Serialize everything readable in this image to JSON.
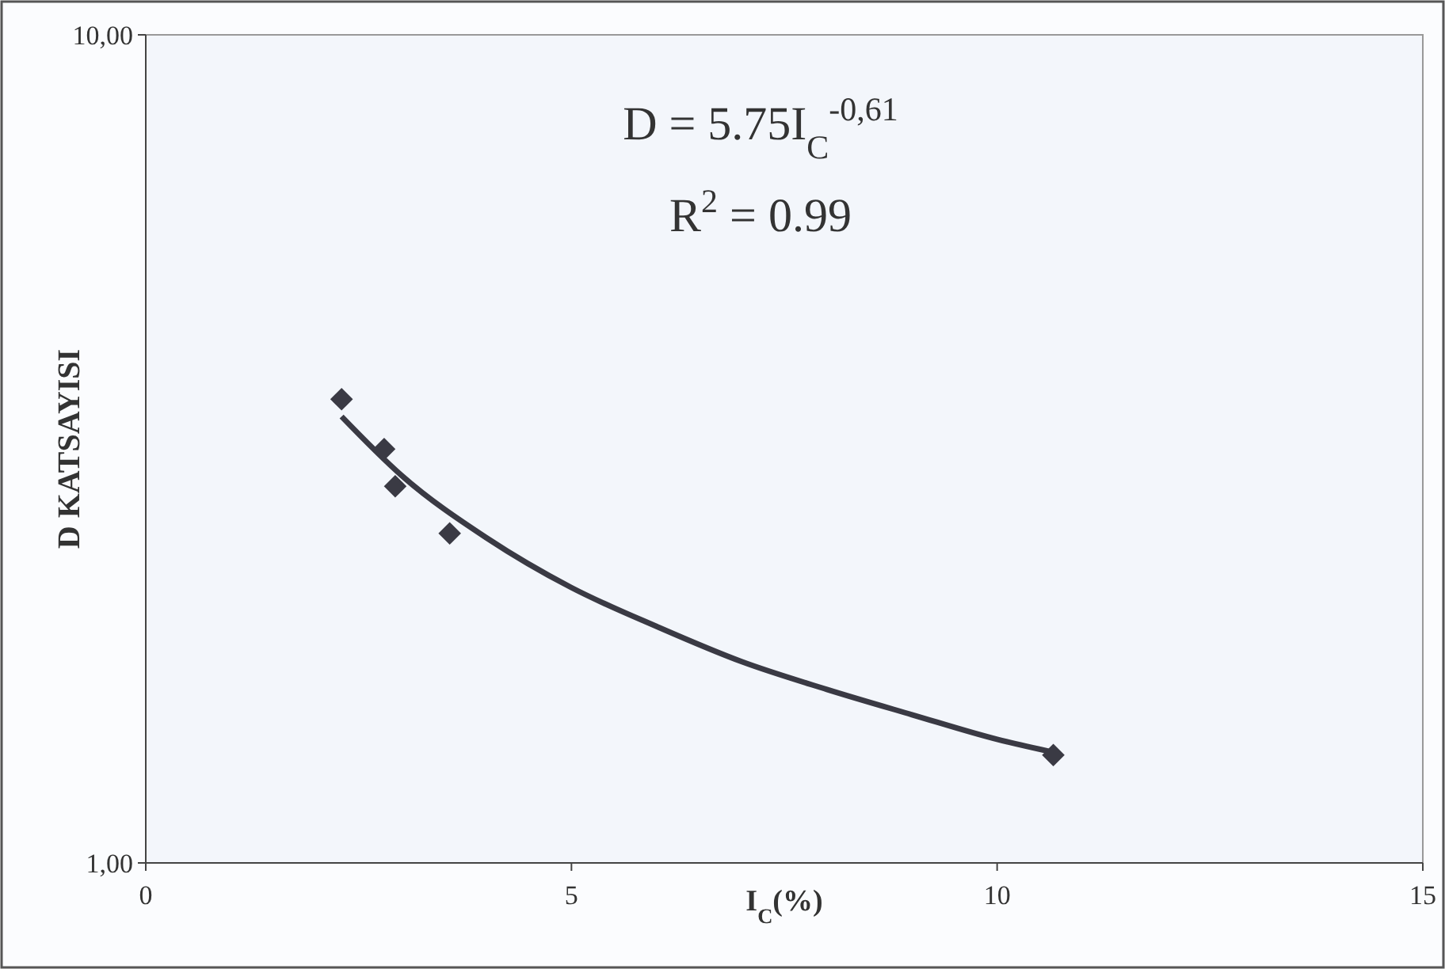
{
  "chart_data": {
    "type": "scatter",
    "xlabel": "I$_{C}$(%)",
    "ylabel": "D KATSAYISI",
    "log": "y",
    "xlim": [
      0,
      15
    ],
    "ylim": [
      1,
      10
    ],
    "xticks": [
      0,
      5,
      10,
      15
    ],
    "yticks": [
      {
        "value": 1,
        "label": "1,00"
      },
      {
        "value": 10,
        "label": "10,00"
      }
    ],
    "annotations": [
      "D = 5.75I$_{C}$$^{-0,61}$",
      "R$^{2}$ = 0.99"
    ],
    "series": [
      {
        "marker": "diamond",
        "color": "#3a3a44",
        "x": [
          2.3,
          2.8,
          2.93,
          3.57,
          10.66
        ],
        "values": [
          3.63,
          3.16,
          2.85,
          2.5,
          1.35
        ]
      },
      {
        "type": "line",
        "marker": "none",
        "color": "#3a3a44",
        "x": [
          2.3,
          3,
          4,
          5,
          6,
          7,
          8,
          9,
          10,
          10.66
        ],
        "values": [
          3.46,
          2.94,
          2.47,
          2.15,
          1.93,
          1.75,
          1.62,
          1.51,
          1.41,
          1.36
        ]
      }
    ]
  }
}
